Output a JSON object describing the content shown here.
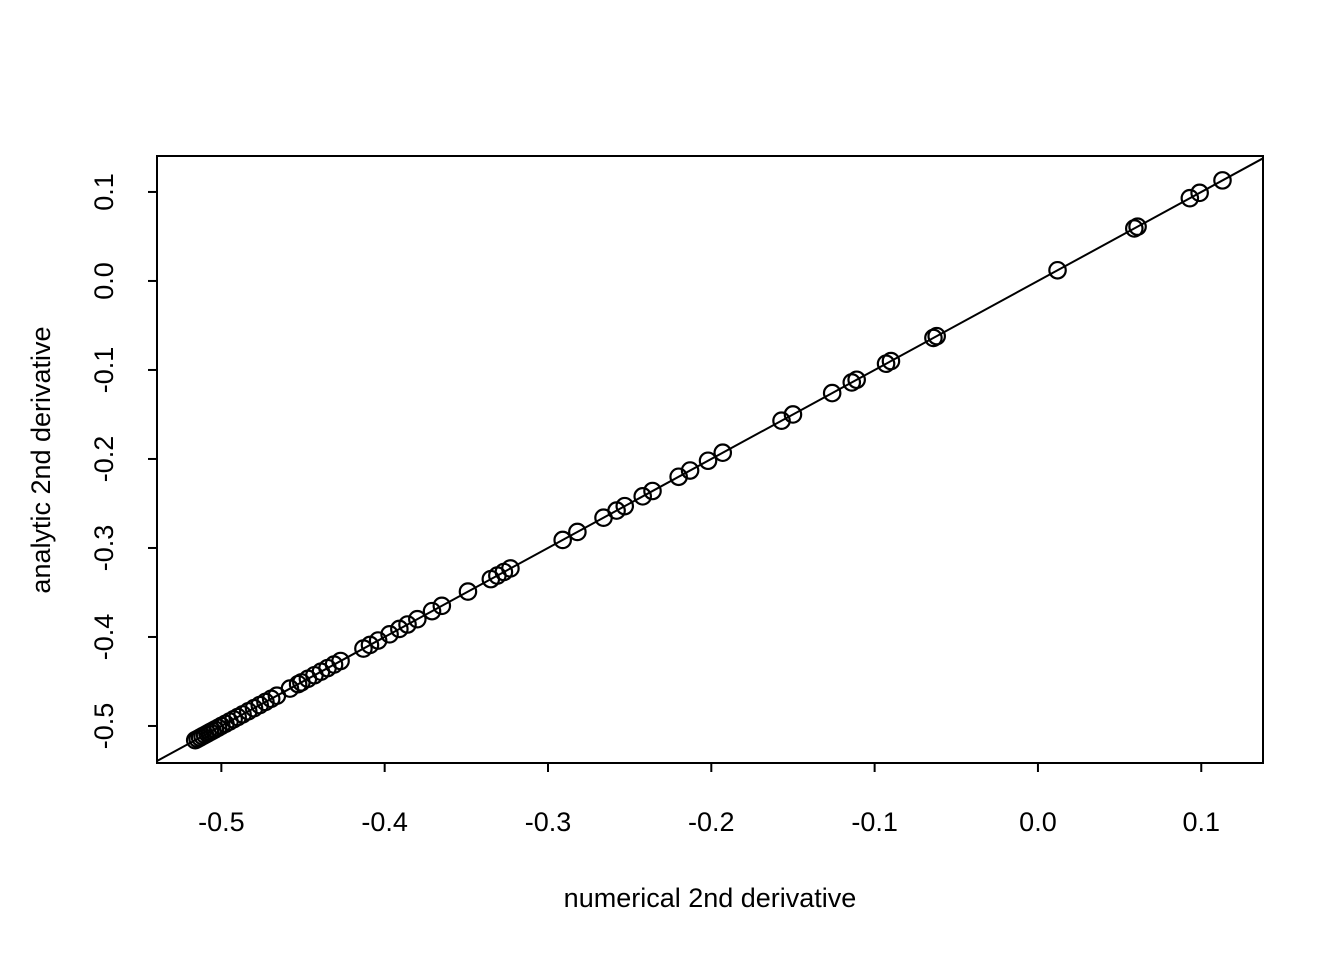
{
  "figure": {
    "background": "#ffffff",
    "foreground": "#000000"
  },
  "chart_data": {
    "type": "scatter",
    "title": "",
    "xlabel": "numerical 2nd derivative",
    "ylabel": "analytic 2nd derivative",
    "xlim": [
      -0.5394,
      0.1378
    ],
    "ylim": [
      -0.5416,
      0.1404
    ],
    "x_ticks": [
      -0.5,
      -0.4,
      -0.3,
      -0.2,
      -0.1,
      0.0,
      0.1
    ],
    "x_tick_labels": [
      "-0.5",
      "-0.4",
      "-0.3",
      "-0.2",
      "-0.1",
      "0.0",
      "0.1"
    ],
    "y_ticks": [
      -0.5,
      -0.4,
      -0.3,
      -0.2,
      -0.1,
      0.0,
      0.1
    ],
    "y_tick_labels": [
      "-0.5",
      "-0.4",
      "-0.3",
      "-0.2",
      "-0.1",
      "0.0",
      "0.1"
    ],
    "grid": false,
    "legend": null,
    "marker": "open-circle",
    "reference_line": {
      "type": "identity",
      "intercept": 0,
      "slope": 1
    },
    "series": [
      {
        "name": "second-derivative-comparison",
        "x": [
          -0.516,
          -0.5145,
          -0.513,
          -0.5115,
          -0.51,
          -0.5085,
          -0.507,
          -0.5055,
          -0.504,
          -0.502,
          -0.5,
          -0.4975,
          -0.495,
          -0.4925,
          -0.49,
          -0.487,
          -0.4835,
          -0.48,
          -0.4765,
          -0.473,
          -0.4695,
          -0.466,
          -0.458,
          -0.453,
          -0.451,
          -0.447,
          -0.443,
          -0.439,
          -0.435,
          -0.431,
          -0.427,
          -0.413,
          -0.409,
          -0.404,
          -0.397,
          -0.391,
          -0.386,
          -0.38,
          -0.371,
          -0.365,
          -0.349,
          -0.335,
          -0.331,
          -0.327,
          -0.323,
          -0.291,
          -0.282,
          -0.266,
          -0.258,
          -0.253,
          -0.242,
          -0.236,
          -0.22,
          -0.213,
          -0.202,
          -0.193,
          -0.157,
          -0.15,
          -0.126,
          -0.114,
          -0.111,
          -0.093,
          -0.09,
          -0.064,
          -0.062,
          0.012,
          0.059,
          0.061,
          0.093,
          0.099,
          0.113
        ],
        "y": [
          -0.516,
          -0.5145,
          -0.513,
          -0.5115,
          -0.51,
          -0.5085,
          -0.507,
          -0.5055,
          -0.504,
          -0.502,
          -0.5,
          -0.4975,
          -0.495,
          -0.4925,
          -0.49,
          -0.487,
          -0.4835,
          -0.48,
          -0.4765,
          -0.473,
          -0.4695,
          -0.466,
          -0.458,
          -0.453,
          -0.451,
          -0.447,
          -0.443,
          -0.439,
          -0.435,
          -0.431,
          -0.427,
          -0.413,
          -0.409,
          -0.404,
          -0.397,
          -0.391,
          -0.386,
          -0.38,
          -0.371,
          -0.365,
          -0.349,
          -0.335,
          -0.331,
          -0.327,
          -0.323,
          -0.291,
          -0.282,
          -0.266,
          -0.258,
          -0.253,
          -0.242,
          -0.236,
          -0.22,
          -0.213,
          -0.202,
          -0.193,
          -0.157,
          -0.15,
          -0.126,
          -0.114,
          -0.111,
          -0.093,
          -0.09,
          -0.064,
          -0.062,
          0.012,
          0.059,
          0.061,
          0.093,
          0.099,
          0.113
        ]
      }
    ]
  }
}
